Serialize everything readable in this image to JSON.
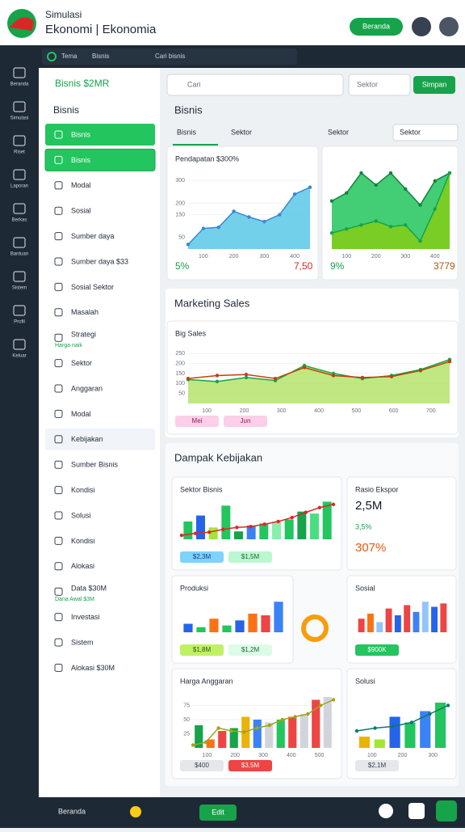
{
  "header": {
    "brand": "Simulasi",
    "title": "Ekonomi | Ekonomia",
    "button": "Beranda"
  },
  "toolbar": {
    "tabs": [
      "Tema",
      "Bisnis"
    ],
    "search": "Cari bisnis"
  },
  "rail": [
    "Beranda",
    "Simulasi",
    "Riset",
    "Laporan",
    "Berkas",
    "Bantuan",
    "Sistem",
    "Profil",
    "Keluar"
  ],
  "sidebar": {
    "badge": "Bisnis $2MR",
    "heading": "Bisnis",
    "items": [
      {
        "label": "Bisnis",
        "state": "filled"
      },
      {
        "label": "Bisnis",
        "state": "outline"
      },
      {
        "label": "Modal"
      },
      {
        "label": "Sosial"
      },
      {
        "label": "Sumber daya"
      },
      {
        "label": "Sumber daya $33"
      },
      {
        "label": "Sosial Sektor"
      },
      {
        "label": "Masalah"
      },
      {
        "label": "Strategi",
        "sub": "Harga naik"
      },
      {
        "label": "Sektor"
      },
      {
        "label": "Anggaran"
      },
      {
        "label": "Modal"
      },
      {
        "label": "Kebijakan",
        "state": "highlight"
      },
      {
        "label": "Sumber Bisnis"
      },
      {
        "label": "Kondisi"
      },
      {
        "label": "Solusi"
      },
      {
        "label": "Kondisi"
      },
      {
        "label": "Alokasi"
      },
      {
        "label": "Data $30M",
        "sub": "Dana Awal $3M"
      },
      {
        "label": "Investasi"
      },
      {
        "label": "Sistem"
      },
      {
        "label": "Alokasi $30M"
      }
    ]
  },
  "main": {
    "search": "Cari",
    "select": "Sektor",
    "button": "Simpan",
    "section": "Bisnis",
    "tabs": [
      "Bisnis",
      "Sektor",
      "Sektor"
    ],
    "tab_select": "Sektor",
    "section2": "Marketing Sales",
    "section3": "Dampak Kebijakan"
  },
  "panels": [
    {
      "title": "Pendapatan $300%",
      "xlabels": [
        "100",
        "200",
        "300",
        "400"
      ],
      "ylim": [
        0,
        350
      ],
      "yticks": [
        50,
        150,
        200,
        300
      ],
      "series": [
        {
          "kind": "area",
          "color": "#5bc8e8",
          "line": "#3a86d6",
          "values": [
            20,
            90,
            95,
            165,
            140,
            120,
            150,
            240,
            270
          ]
        }
      ],
      "notes": [
        {
          "text": "5%",
          "color": "#16a34a"
        },
        {
          "text": "7,50",
          "color": "#dc2626"
        }
      ]
    },
    {
      "xlabels": [
        "100",
        "200",
        "300",
        "400"
      ],
      "ylim": [
        0,
        100
      ],
      "series": [
        {
          "kind": "area",
          "color": "#22c55e",
          "line": "#15803d",
          "values": [
            60,
            70,
            95,
            80,
            95,
            75,
            55,
            85,
            95
          ]
        },
        {
          "kind": "area",
          "color": "#84cc16",
          "line": "#16a34a",
          "values": [
            20,
            25,
            30,
            35,
            28,
            30,
            10,
            50,
            95
          ]
        }
      ],
      "notes": [
        {
          "text": "9%",
          "color": "#16a34a"
        },
        {
          "text": "3779",
          "color": "#b45309"
        }
      ]
    },
    {
      "title": "Big Sales",
      "xlabels": [
        "100",
        "200",
        "300",
        "400",
        "500",
        "600",
        "700"
      ],
      "ylim": [
        0,
        300
      ],
      "yticks": [
        50,
        100,
        150,
        200,
        250
      ],
      "series": [
        {
          "kind": "area",
          "color": "#b5e36b",
          "line": "#16a34a",
          "values": [
            120,
            110,
            130,
            115,
            190,
            150,
            125,
            140,
            170,
            220
          ]
        },
        {
          "kind": "line",
          "color": "#c2410c",
          "values": [
            125,
            140,
            145,
            125,
            180,
            140,
            130,
            135,
            165,
            210
          ]
        }
      ],
      "notes": [
        {
          "text": "Mei",
          "color": "#9d174d",
          "bg": "#fbcfe8"
        },
        {
          "text": "Jun",
          "color": "#9d174d",
          "bg": "#fbcfe8"
        }
      ]
    },
    {
      "title": "Sektor Bisnis",
      "ylim": [
        0,
        100
      ],
      "series": [
        {
          "kind": "bar",
          "colors": [
            "#22c55e",
            "#2563eb",
            "#a3e635",
            "#22c55e",
            "#16a34a",
            "#3b82f6",
            "#22c55e",
            "#86efac",
            "#22c55e",
            "#16a34a",
            "#4ade80",
            "#22c55e"
          ],
          "values": [
            45,
            60,
            30,
            85,
            20,
            35,
            40,
            45,
            50,
            70,
            65,
            95
          ]
        },
        {
          "kind": "line",
          "color": "#dc2626",
          "values": [
            10,
            15,
            18,
            25,
            30,
            32,
            38,
            45,
            55,
            68,
            80,
            88
          ]
        }
      ],
      "notes": [
        {
          "text": "$2,3M",
          "color": "#1e3a8a",
          "bg": "#7dd3fc"
        },
        {
          "text": "$1,5M",
          "color": "#166534",
          "bg": "#bbf7d0"
        }
      ]
    },
    {
      "title": "Rasio Ekspor",
      "notes": [
        {
          "text": "2,5M",
          "color": "#111827",
          "big": true
        },
        {
          "text": "3,5%",
          "color": "#16a34a"
        },
        {
          "text": "307%",
          "color": "#ea580c",
          "big": true
        }
      ]
    },
    {
      "title": "Produksi",
      "ylim": [
        0,
        100
      ],
      "series": [
        {
          "kind": "bar",
          "colors": [
            "#2563eb",
            "#22c55e",
            "#f97316",
            "#22c55e",
            "#2563eb",
            "#f97316",
            "#ef4444",
            "#3b82f6"
          ],
          "values": [
            25,
            15,
            40,
            20,
            35,
            55,
            50,
            90
          ]
        }
      ],
      "notes": [
        {
          "text": "$1,8M",
          "color": "#365314",
          "bg": "#bef264"
        },
        {
          "text": "$1,2M",
          "color": "#166534",
          "bg": "#dcfce7"
        }
      ]
    },
    {
      "title": "Sosial",
      "ylim": [
        0,
        100
      ],
      "series": [
        {
          "kind": "bar",
          "colors": [
            "#ef4444",
            "#f97316",
            "#93c5fd",
            "#ef4444",
            "#2563eb",
            "#ef4444",
            "#3b82f6",
            "#93c5fd",
            "#2563eb",
            "#ef4444"
          ],
          "values": [
            40,
            55,
            30,
            70,
            50,
            80,
            60,
            90,
            75,
            85
          ]
        }
      ],
      "notes": [
        {
          "text": "$900K",
          "color": "#ffffff",
          "bg": "#22c55e"
        }
      ]
    },
    {
      "title": "Harga Anggaran",
      "xlabels": [
        "100",
        "200",
        "300",
        "400",
        "500"
      ],
      "ylim": [
        0,
        100
      ],
      "yticks": [
        25,
        50,
        75
      ],
      "series": [
        {
          "kind": "bar",
          "colors": [
            "#16a34a",
            "#f97316",
            "#ef4444",
            "#16a34a",
            "#eab308",
            "#3b82f6",
            "#d1d5db",
            "#22c55e",
            "#ef4444",
            "#d1d5db",
            "#ef4444",
            "#d1d5db"
          ],
          "values": [
            40,
            15,
            30,
            35,
            55,
            50,
            45,
            50,
            55,
            60,
            85,
            90
          ]
        },
        {
          "kind": "line",
          "color": "#a3a31a",
          "values": [
            5,
            10,
            35,
            30,
            28,
            35,
            40,
            50,
            55,
            60,
            75,
            85
          ]
        }
      ],
      "notes": [
        {
          "text": "$400",
          "color": "#374151",
          "bg": "#e5e7eb"
        },
        {
          "text": "$3,5M",
          "color": "#ffffff",
          "bg": "#ef4444"
        }
      ]
    },
    {
      "title": "Solusi",
      "xlabels": [
        "100",
        "200",
        "300"
      ],
      "ylim": [
        0,
        100
      ],
      "series": [
        {
          "kind": "bar",
          "colors": [
            "#eab308",
            "#a3e635",
            "#2563eb",
            "#22c55e",
            "#3b82f6",
            "#22c55e"
          ],
          "values": [
            20,
            15,
            55,
            45,
            65,
            80
          ]
        },
        {
          "kind": "line",
          "color": "#0f766e",
          "values": [
            30,
            35,
            38,
            45,
            60,
            75
          ]
        }
      ],
      "notes": [
        {
          "text": "$2,1M",
          "color": "#374151",
          "bg": "#e5e7eb"
        }
      ]
    }
  ],
  "footer": {
    "menu": "Beranda",
    "button": "Edit"
  }
}
